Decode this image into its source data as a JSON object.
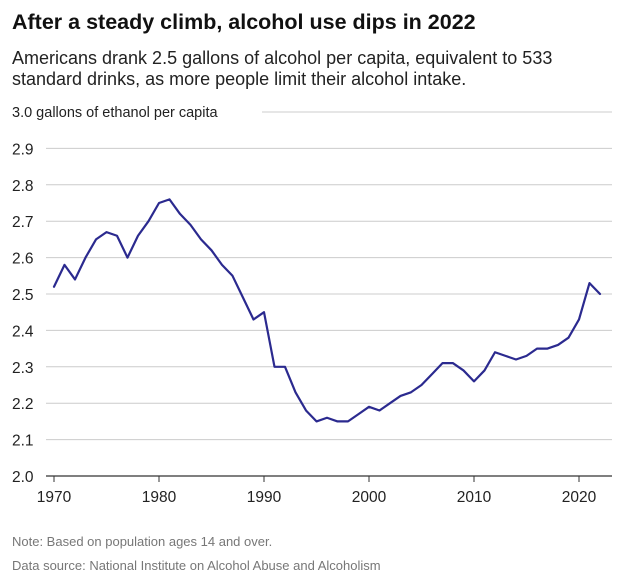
{
  "title": "After a steady climb, alcohol use dips in 2022",
  "subtitle": "Americans drank 2.5 gallons of alcohol per capita, equivalent to 533 standard drinks, as more people limit their alcohol intake.",
  "note": "Note: Based on population ages 14 and over.",
  "source": "Data source: National Institute on Alcohol Abuse and Alcoholism",
  "colors": {
    "line": "#2b2a8f",
    "grid": "#cccccc",
    "axis": "#333333",
    "text": "#222222"
  },
  "chart_data": {
    "type": "line",
    "title": "After a steady climb, alcohol use dips in 2022",
    "subtitle": "Americans drank 2.5 gallons of alcohol per capita, equivalent to 533 standard drinks, as more people limit their alcohol intake.",
    "ylabel_inline": "3.0 gallons of ethanol per capita",
    "xlim": [
      1970,
      2022
    ],
    "ylim": [
      2.0,
      3.0
    ],
    "y_ticks": [
      2.0,
      2.1,
      2.2,
      2.3,
      2.4,
      2.5,
      2.6,
      2.7,
      2.8,
      2.9
    ],
    "y_tick_labels": [
      "2.0",
      "2.1",
      "2.2",
      "2.3",
      "2.4",
      "2.5",
      "2.6",
      "2.7",
      "2.8",
      "2.9"
    ],
    "x_ticks": [
      1970,
      1980,
      1990,
      2000,
      2010,
      2020
    ],
    "x_tick_labels": [
      "1970",
      "1980",
      "1990",
      "2000",
      "2010",
      "2020"
    ],
    "grid": true,
    "series": [
      {
        "x": [
          1970,
          1971,
          1972,
          1973,
          1974,
          1975,
          1976,
          1977,
          1978,
          1979,
          1980,
          1981,
          1982,
          1983,
          1984,
          1985,
          1986,
          1987,
          1988,
          1989,
          1990,
          1991,
          1992,
          1993,
          1994,
          1995,
          1996,
          1997,
          1998,
          1999,
          2000,
          2001,
          2002,
          2003,
          2004,
          2005,
          2006,
          2007,
          2008,
          2009,
          2010,
          2011,
          2012,
          2013,
          2014,
          2015,
          2016,
          2017,
          2018,
          2019,
          2020,
          2021,
          2022
        ],
        "values": [
          2.52,
          2.58,
          2.54,
          2.6,
          2.65,
          2.67,
          2.66,
          2.6,
          2.66,
          2.7,
          2.75,
          2.76,
          2.72,
          2.69,
          2.65,
          2.62,
          2.58,
          2.55,
          2.49,
          2.43,
          2.45,
          2.3,
          2.3,
          2.23,
          2.18,
          2.15,
          2.16,
          2.15,
          2.15,
          2.17,
          2.19,
          2.18,
          2.2,
          2.22,
          2.23,
          2.25,
          2.28,
          2.31,
          2.31,
          2.29,
          2.26,
          2.29,
          2.34,
          2.33,
          2.32,
          2.33,
          2.35,
          2.35,
          2.36,
          2.38,
          2.43,
          2.53,
          2.5
        ]
      }
    ]
  }
}
